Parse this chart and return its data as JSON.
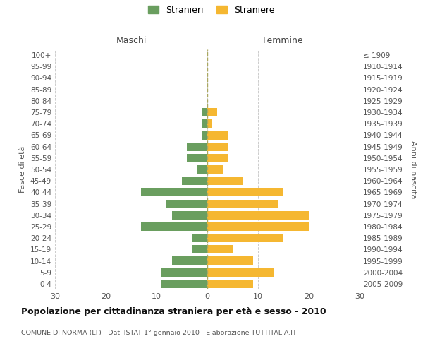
{
  "age_groups": [
    "100+",
    "95-99",
    "90-94",
    "85-89",
    "80-84",
    "75-79",
    "70-74",
    "65-69",
    "60-64",
    "55-59",
    "50-54",
    "45-49",
    "40-44",
    "35-39",
    "30-34",
    "25-29",
    "20-24",
    "15-19",
    "10-14",
    "5-9",
    "0-4"
  ],
  "birth_years": [
    "≤ 1909",
    "1910-1914",
    "1915-1919",
    "1920-1924",
    "1925-1929",
    "1930-1934",
    "1935-1939",
    "1940-1944",
    "1945-1949",
    "1950-1954",
    "1955-1959",
    "1960-1964",
    "1965-1969",
    "1970-1974",
    "1975-1979",
    "1980-1984",
    "1985-1989",
    "1990-1994",
    "1995-1999",
    "2000-2004",
    "2005-2009"
  ],
  "maschi": [
    0,
    0,
    0,
    0,
    0,
    1,
    1,
    1,
    4,
    4,
    2,
    5,
    13,
    8,
    7,
    13,
    3,
    3,
    7,
    9,
    9
  ],
  "femmine": [
    0,
    0,
    0,
    0,
    0,
    2,
    1,
    4,
    4,
    4,
    3,
    7,
    15,
    14,
    20,
    20,
    15,
    5,
    9,
    13,
    9
  ],
  "maschi_color": "#6a9e5f",
  "femmine_color": "#f5b731",
  "title": "Popolazione per cittadinanza straniera per età e sesso - 2010",
  "subtitle": "COMUNE DI NORMA (LT) - Dati ISTAT 1° gennaio 2010 - Elaborazione TUTTITALIA.IT",
  "xlabel_left": "Maschi",
  "xlabel_right": "Femmine",
  "ylabel_left": "Fasce di età",
  "ylabel_right": "Anni di nascita",
  "legend_maschi": "Stranieri",
  "legend_femmine": "Straniere",
  "xlim": 30,
  "background_color": "#ffffff",
  "grid_color": "#cccccc"
}
